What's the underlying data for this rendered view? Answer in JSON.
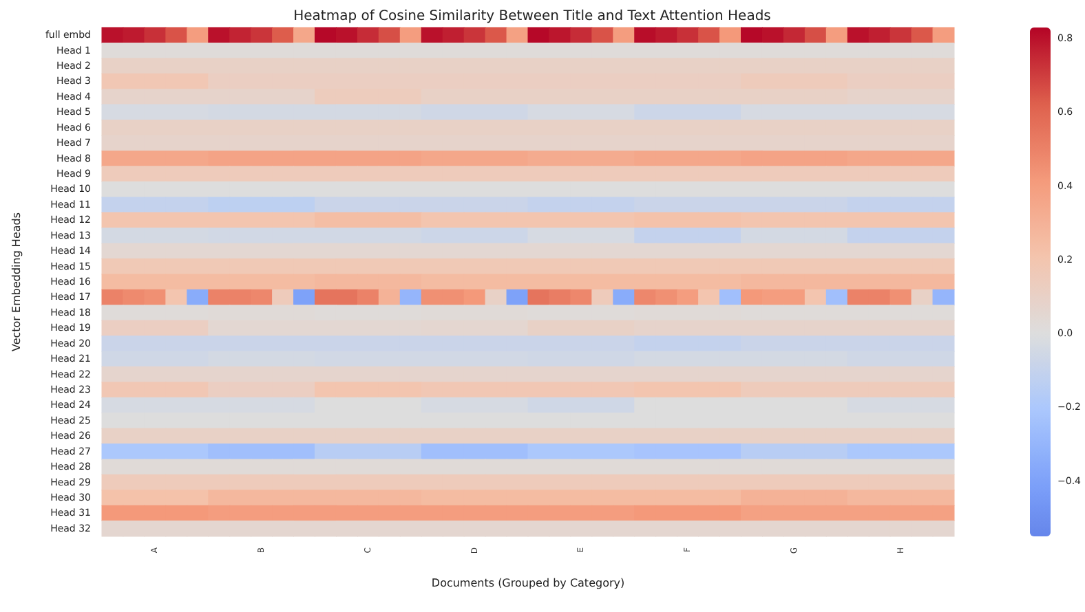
{
  "chart_data": {
    "type": "heatmap",
    "title": "Heatmap of Cosine Similarity Between Title and Text Attention Heads",
    "xlabel": "Documents (Grouped by Category)",
    "ylabel": "Vector Embedding Heads",
    "categories": [
      null,
      null,
      "A",
      null,
      null,
      null,
      null,
      "B",
      null,
      null,
      null,
      null,
      "C",
      null,
      null,
      null,
      null,
      "D",
      null,
      null,
      null,
      null,
      "E",
      null,
      null,
      null,
      null,
      "F",
      null,
      null,
      null,
      null,
      "G",
      null,
      null,
      null,
      null,
      "H",
      null,
      null
    ],
    "y_categories": [
      "full embd",
      "Head 1",
      "Head 2",
      "Head 3",
      "Head 4",
      "Head 5",
      "Head 6",
      "Head 7",
      "Head 8",
      "Head 9",
      "Head 10",
      "Head 11",
      "Head 12",
      "Head 13",
      "Head 14",
      "Head 15",
      "Head 16",
      "Head 17",
      "Head 18",
      "Head 19",
      "Head 20",
      "Head 21",
      "Head 22",
      "Head 23",
      "Head 24",
      "Head 25",
      "Head 26",
      "Head 27",
      "Head 28",
      "Head 29",
      "Head 30",
      "Head 31",
      "Head 32"
    ],
    "cells": [
      [
        0.8,
        0.78,
        0.73,
        0.65,
        0.4,
        0.8,
        0.76,
        0.72,
        0.63,
        0.35,
        0.82,
        0.8,
        0.74,
        0.66,
        0.4,
        0.8,
        0.77,
        0.72,
        0.64,
        0.38,
        0.82,
        0.79,
        0.74,
        0.65,
        0.4,
        0.81,
        0.78,
        0.73,
        0.65,
        0.42,
        0.82,
        0.8,
        0.75,
        0.66,
        0.4,
        0.8,
        0.77,
        0.72,
        0.64,
        0.4
      ],
      [
        0.02,
        0.02,
        0.02,
        0.02,
        0.02,
        0.02,
        0.02,
        0.02,
        0.02,
        0.02,
        0.02,
        0.02,
        0.02,
        0.02,
        0.02,
        0.02,
        0.02,
        0.02,
        0.02,
        0.02,
        0.02,
        0.02,
        0.02,
        0.02,
        0.02,
        0.02,
        0.02,
        0.02,
        0.02,
        0.02,
        0.02,
        0.02,
        0.02,
        0.02,
        0.02,
        0.02,
        0.02,
        0.02,
        0.02,
        0.02
      ],
      [
        0.1,
        0.1,
        0.1,
        0.1,
        0.1,
        0.1,
        0.1,
        0.1,
        0.1,
        0.1,
        0.1,
        0.1,
        0.1,
        0.1,
        0.1,
        0.1,
        0.1,
        0.1,
        0.1,
        0.1,
        0.1,
        0.1,
        0.1,
        0.1,
        0.1,
        0.1,
        0.1,
        0.1,
        0.1,
        0.1,
        0.1,
        0.1,
        0.1,
        0.1,
        0.1,
        0.1,
        0.1,
        0.1,
        0.1,
        0.1
      ],
      [
        0.18,
        0.18,
        0.18,
        0.18,
        0.18,
        0.12,
        0.12,
        0.12,
        0.12,
        0.12,
        0.12,
        0.12,
        0.12,
        0.12,
        0.12,
        0.12,
        0.12,
        0.12,
        0.12,
        0.12,
        0.12,
        0.12,
        0.12,
        0.12,
        0.12,
        0.12,
        0.12,
        0.12,
        0.12,
        0.12,
        0.15,
        0.15,
        0.15,
        0.15,
        0.15,
        0.12,
        0.12,
        0.12,
        0.12,
        0.12
      ],
      [
        0.08,
        0.08,
        0.08,
        0.08,
        0.08,
        0.08,
        0.08,
        0.08,
        0.08,
        0.08,
        0.14,
        0.14,
        0.14,
        0.14,
        0.14,
        0.1,
        0.1,
        0.1,
        0.1,
        0.1,
        0.1,
        0.1,
        0.1,
        0.1,
        0.1,
        0.1,
        0.1,
        0.1,
        0.1,
        0.1,
        0.1,
        0.1,
        0.1,
        0.1,
        0.1,
        0.08,
        0.08,
        0.08,
        0.08,
        0.08
      ],
      [
        -0.03,
        -0.03,
        -0.03,
        -0.03,
        -0.03,
        -0.04,
        -0.04,
        -0.04,
        -0.04,
        -0.04,
        -0.04,
        -0.04,
        -0.04,
        -0.04,
        -0.04,
        -0.06,
        -0.06,
        -0.06,
        -0.06,
        -0.06,
        -0.03,
        -0.03,
        -0.03,
        -0.03,
        -0.03,
        -0.07,
        -0.07,
        -0.07,
        -0.07,
        -0.07,
        -0.03,
        -0.03,
        -0.03,
        -0.03,
        -0.03,
        -0.03,
        -0.03,
        -0.03,
        -0.03,
        -0.03
      ],
      [
        0.1,
        0.1,
        0.1,
        0.1,
        0.1,
        0.1,
        0.1,
        0.1,
        0.1,
        0.1,
        0.1,
        0.1,
        0.1,
        0.1,
        0.1,
        0.1,
        0.1,
        0.1,
        0.1,
        0.1,
        0.1,
        0.1,
        0.1,
        0.1,
        0.1,
        0.1,
        0.1,
        0.1,
        0.1,
        0.1,
        0.1,
        0.1,
        0.1,
        0.1,
        0.1,
        0.1,
        0.1,
        0.1,
        0.1,
        0.1
      ],
      [
        0.08,
        0.08,
        0.08,
        0.08,
        0.08,
        0.08,
        0.08,
        0.08,
        0.08,
        0.08,
        0.08,
        0.08,
        0.08,
        0.08,
        0.08,
        0.08,
        0.08,
        0.08,
        0.08,
        0.08,
        0.08,
        0.08,
        0.08,
        0.08,
        0.08,
        0.08,
        0.08,
        0.08,
        0.08,
        0.08,
        0.08,
        0.08,
        0.08,
        0.08,
        0.08,
        0.08,
        0.08,
        0.08,
        0.08,
        0.08
      ],
      [
        0.35,
        0.35,
        0.35,
        0.35,
        0.35,
        0.37,
        0.37,
        0.37,
        0.37,
        0.37,
        0.37,
        0.37,
        0.37,
        0.37,
        0.37,
        0.35,
        0.35,
        0.35,
        0.35,
        0.35,
        0.33,
        0.33,
        0.33,
        0.33,
        0.33,
        0.35,
        0.35,
        0.35,
        0.35,
        0.35,
        0.37,
        0.37,
        0.37,
        0.37,
        0.37,
        0.35,
        0.35,
        0.35,
        0.35,
        0.35
      ],
      [
        0.15,
        0.15,
        0.15,
        0.15,
        0.15,
        0.15,
        0.15,
        0.15,
        0.15,
        0.15,
        0.15,
        0.15,
        0.15,
        0.15,
        0.15,
        0.15,
        0.15,
        0.15,
        0.15,
        0.15,
        0.15,
        0.15,
        0.15,
        0.15,
        0.15,
        0.15,
        0.15,
        0.15,
        0.15,
        0.15,
        0.15,
        0.15,
        0.15,
        0.15,
        0.15,
        0.15,
        0.15,
        0.15,
        0.15,
        0.15
      ],
      [
        0.0,
        0.0,
        0.0,
        0.0,
        0.0,
        0.0,
        0.0,
        0.0,
        0.0,
        0.0,
        0.0,
        0.0,
        0.0,
        0.0,
        0.0,
        0.0,
        0.0,
        0.0,
        0.0,
        0.0,
        0.0,
        0.0,
        0.0,
        0.0,
        0.0,
        0.0,
        0.0,
        0.0,
        0.0,
        0.0,
        0.0,
        0.0,
        0.0,
        0.0,
        0.0,
        0.0,
        0.0,
        0.0,
        0.0,
        0.0
      ],
      [
        -0.1,
        -0.1,
        -0.1,
        -0.1,
        -0.1,
        -0.13,
        -0.13,
        -0.13,
        -0.13,
        -0.13,
        -0.08,
        -0.08,
        -0.08,
        -0.08,
        -0.08,
        -0.08,
        -0.08,
        -0.08,
        -0.08,
        -0.08,
        -0.1,
        -0.1,
        -0.1,
        -0.1,
        -0.1,
        -0.08,
        -0.08,
        -0.08,
        -0.08,
        -0.08,
        -0.08,
        -0.08,
        -0.08,
        -0.08,
        -0.08,
        -0.1,
        -0.1,
        -0.1,
        -0.1,
        -0.1
      ],
      [
        0.2,
        0.2,
        0.2,
        0.2,
        0.2,
        0.2,
        0.2,
        0.2,
        0.2,
        0.2,
        0.24,
        0.24,
        0.24,
        0.24,
        0.24,
        0.2,
        0.2,
        0.2,
        0.2,
        0.2,
        0.2,
        0.2,
        0.2,
        0.2,
        0.2,
        0.22,
        0.22,
        0.22,
        0.22,
        0.22,
        0.2,
        0.2,
        0.2,
        0.2,
        0.2,
        0.2,
        0.2,
        0.2,
        0.2,
        0.2
      ],
      [
        -0.04,
        -0.04,
        -0.04,
        -0.04,
        -0.04,
        -0.05,
        -0.05,
        -0.05,
        -0.05,
        -0.05,
        -0.05,
        -0.05,
        -0.05,
        -0.05,
        -0.05,
        -0.07,
        -0.07,
        -0.07,
        -0.07,
        -0.07,
        -0.03,
        -0.03,
        -0.03,
        -0.03,
        -0.03,
        -0.1,
        -0.1,
        -0.1,
        -0.1,
        -0.1,
        -0.04,
        -0.04,
        -0.04,
        -0.04,
        -0.04,
        -0.1,
        -0.1,
        -0.1,
        -0.1,
        -0.1
      ],
      [
        0.05,
        0.05,
        0.05,
        0.05,
        0.05,
        0.05,
        0.05,
        0.05,
        0.05,
        0.05,
        0.05,
        0.05,
        0.05,
        0.05,
        0.05,
        0.05,
        0.05,
        0.05,
        0.05,
        0.05,
        0.05,
        0.05,
        0.05,
        0.05,
        0.05,
        0.05,
        0.05,
        0.05,
        0.05,
        0.05,
        0.05,
        0.05,
        0.05,
        0.05,
        0.05,
        0.05,
        0.05,
        0.05,
        0.05,
        0.05
      ],
      [
        0.17,
        0.17,
        0.17,
        0.17,
        0.17,
        0.17,
        0.17,
        0.17,
        0.17,
        0.17,
        0.17,
        0.17,
        0.17,
        0.17,
        0.17,
        0.17,
        0.17,
        0.17,
        0.17,
        0.17,
        0.17,
        0.17,
        0.17,
        0.17,
        0.17,
        0.17,
        0.17,
        0.17,
        0.17,
        0.17,
        0.17,
        0.17,
        0.17,
        0.17,
        0.17,
        0.17,
        0.17,
        0.17,
        0.17,
        0.17
      ],
      [
        0.25,
        0.25,
        0.25,
        0.25,
        0.25,
        0.25,
        0.25,
        0.25,
        0.25,
        0.25,
        0.27,
        0.27,
        0.27,
        0.27,
        0.27,
        0.25,
        0.25,
        0.25,
        0.25,
        0.25,
        0.25,
        0.25,
        0.25,
        0.25,
        0.25,
        0.25,
        0.25,
        0.25,
        0.25,
        0.25,
        0.27,
        0.27,
        0.27,
        0.27,
        0.27,
        0.27,
        0.27,
        0.27,
        0.27,
        0.27
      ],
      [
        0.5,
        0.47,
        0.45,
        0.2,
        -0.35,
        0.5,
        0.5,
        0.48,
        0.15,
        -0.4,
        0.55,
        0.55,
        0.5,
        0.3,
        -0.3,
        0.45,
        0.45,
        0.42,
        0.1,
        -0.4,
        0.55,
        0.52,
        0.48,
        0.15,
        -0.35,
        0.48,
        0.45,
        0.4,
        0.2,
        -0.25,
        0.42,
        0.4,
        0.4,
        0.2,
        -0.25,
        0.5,
        0.5,
        0.45,
        0.1,
        -0.3
      ],
      [
        0.02,
        0.02,
        0.02,
        0.02,
        0.02,
        0.03,
        0.03,
        0.03,
        0.03,
        0.03,
        0.02,
        0.02,
        0.02,
        0.02,
        0.02,
        0.03,
        0.03,
        0.03,
        0.03,
        0.03,
        0.02,
        0.02,
        0.02,
        0.02,
        0.02,
        0.03,
        0.03,
        0.03,
        0.03,
        0.03,
        0.02,
        0.02,
        0.02,
        0.02,
        0.02,
        0.02,
        0.02,
        0.02,
        0.02,
        0.02
      ],
      [
        0.12,
        0.12,
        0.12,
        0.12,
        0.12,
        0.05,
        0.05,
        0.05,
        0.05,
        0.05,
        0.05,
        0.05,
        0.05,
        0.05,
        0.05,
        0.06,
        0.06,
        0.06,
        0.06,
        0.06,
        0.1,
        0.1,
        0.1,
        0.1,
        0.1,
        0.08,
        0.08,
        0.08,
        0.08,
        0.08,
        0.08,
        0.08,
        0.08,
        0.08,
        0.08,
        0.08,
        0.08,
        0.08,
        0.08,
        0.08
      ],
      [
        -0.08,
        -0.08,
        -0.08,
        -0.08,
        -0.08,
        -0.08,
        -0.08,
        -0.08,
        -0.08,
        -0.08,
        -0.08,
        -0.08,
        -0.08,
        -0.08,
        -0.08,
        -0.08,
        -0.08,
        -0.08,
        -0.08,
        -0.08,
        -0.08,
        -0.08,
        -0.08,
        -0.08,
        -0.08,
        -0.1,
        -0.1,
        -0.1,
        -0.1,
        -0.1,
        -0.08,
        -0.08,
        -0.08,
        -0.08,
        -0.08,
        -0.08,
        -0.08,
        -0.08,
        -0.08,
        -0.08
      ],
      [
        -0.06,
        -0.06,
        -0.06,
        -0.06,
        -0.06,
        -0.04,
        -0.04,
        -0.04,
        -0.04,
        -0.04,
        -0.05,
        -0.05,
        -0.05,
        -0.05,
        -0.05,
        -0.05,
        -0.05,
        -0.05,
        -0.05,
        -0.05,
        -0.06,
        -0.06,
        -0.06,
        -0.06,
        -0.06,
        -0.04,
        -0.04,
        -0.04,
        -0.04,
        -0.04,
        -0.04,
        -0.04,
        -0.04,
        -0.04,
        -0.04,
        -0.06,
        -0.06,
        -0.06,
        -0.06,
        -0.06
      ],
      [
        0.07,
        0.07,
        0.07,
        0.07,
        0.07,
        0.07,
        0.07,
        0.07,
        0.07,
        0.07,
        0.07,
        0.07,
        0.07,
        0.07,
        0.07,
        0.07,
        0.07,
        0.07,
        0.07,
        0.07,
        0.07,
        0.07,
        0.07,
        0.07,
        0.07,
        0.07,
        0.07,
        0.07,
        0.07,
        0.07,
        0.07,
        0.07,
        0.07,
        0.07,
        0.07,
        0.07,
        0.07,
        0.07,
        0.07,
        0.07
      ],
      [
        0.18,
        0.18,
        0.18,
        0.18,
        0.18,
        0.12,
        0.12,
        0.12,
        0.12,
        0.12,
        0.2,
        0.2,
        0.2,
        0.2,
        0.2,
        0.18,
        0.18,
        0.18,
        0.18,
        0.18,
        0.18,
        0.18,
        0.18,
        0.18,
        0.18,
        0.2,
        0.2,
        0.2,
        0.2,
        0.2,
        0.15,
        0.15,
        0.15,
        0.15,
        0.15,
        0.15,
        0.15,
        0.15,
        0.15,
        0.15
      ],
      [
        -0.03,
        -0.03,
        -0.03,
        -0.03,
        -0.03,
        -0.03,
        -0.03,
        -0.03,
        -0.03,
        -0.03,
        0.0,
        0.0,
        0.0,
        0.0,
        0.0,
        -0.03,
        -0.03,
        -0.03,
        -0.03,
        -0.03,
        -0.06,
        -0.06,
        -0.06,
        -0.06,
        -0.06,
        0.0,
        0.0,
        0.0,
        0.0,
        0.0,
        0.0,
        0.0,
        0.0,
        0.0,
        0.0,
        -0.03,
        -0.03,
        -0.03,
        -0.03,
        -0.03
      ],
      [
        0.0,
        0.0,
        0.0,
        0.0,
        0.0,
        0.0,
        0.0,
        0.0,
        0.0,
        0.0,
        0.0,
        0.0,
        0.0,
        0.0,
        0.0,
        0.0,
        0.0,
        0.0,
        0.0,
        0.0,
        0.0,
        0.0,
        0.0,
        0.0,
        0.0,
        0.0,
        0.0,
        0.0,
        0.0,
        0.0,
        0.0,
        0.0,
        0.0,
        0.0,
        0.0,
        0.0,
        0.0,
        0.0,
        0.0,
        0.0
      ],
      [
        0.1,
        0.1,
        0.1,
        0.1,
        0.1,
        0.1,
        0.1,
        0.1,
        0.1,
        0.1,
        0.1,
        0.1,
        0.1,
        0.1,
        0.1,
        0.1,
        0.1,
        0.1,
        0.1,
        0.1,
        0.1,
        0.1,
        0.1,
        0.1,
        0.1,
        0.1,
        0.1,
        0.1,
        0.1,
        0.1,
        0.1,
        0.1,
        0.1,
        0.1,
        0.1,
        0.1,
        0.1,
        0.1,
        0.1,
        0.1
      ],
      [
        -0.2,
        -0.2,
        -0.2,
        -0.2,
        -0.2,
        -0.25,
        -0.25,
        -0.25,
        -0.25,
        -0.25,
        -0.15,
        -0.15,
        -0.15,
        -0.15,
        -0.15,
        -0.25,
        -0.25,
        -0.25,
        -0.25,
        -0.25,
        -0.2,
        -0.2,
        -0.2,
        -0.2,
        -0.2,
        -0.22,
        -0.22,
        -0.22,
        -0.22,
        -0.22,
        -0.15,
        -0.15,
        -0.15,
        -0.15,
        -0.15,
        -0.2,
        -0.2,
        -0.2,
        -0.2,
        -0.2
      ],
      [
        0.03,
        0.03,
        0.03,
        0.03,
        0.03,
        0.03,
        0.03,
        0.03,
        0.03,
        0.03,
        0.03,
        0.03,
        0.03,
        0.03,
        0.03,
        0.03,
        0.03,
        0.03,
        0.03,
        0.03,
        0.03,
        0.03,
        0.03,
        0.03,
        0.03,
        0.03,
        0.03,
        0.03,
        0.03,
        0.03,
        0.03,
        0.03,
        0.03,
        0.03,
        0.03,
        0.03,
        0.03,
        0.03,
        0.03,
        0.03
      ],
      [
        0.15,
        0.15,
        0.15,
        0.15,
        0.15,
        0.15,
        0.15,
        0.15,
        0.15,
        0.15,
        0.15,
        0.15,
        0.15,
        0.15,
        0.15,
        0.15,
        0.15,
        0.15,
        0.15,
        0.15,
        0.15,
        0.15,
        0.15,
        0.15,
        0.15,
        0.15,
        0.15,
        0.15,
        0.15,
        0.15,
        0.15,
        0.15,
        0.15,
        0.15,
        0.15,
        0.15,
        0.15,
        0.15,
        0.15,
        0.15
      ],
      [
        0.22,
        0.22,
        0.22,
        0.22,
        0.22,
        0.27,
        0.27,
        0.27,
        0.27,
        0.27,
        0.27,
        0.27,
        0.27,
        0.27,
        0.27,
        0.25,
        0.25,
        0.25,
        0.25,
        0.25,
        0.25,
        0.25,
        0.25,
        0.25,
        0.25,
        0.25,
        0.25,
        0.25,
        0.25,
        0.25,
        0.3,
        0.3,
        0.3,
        0.3,
        0.3,
        0.27,
        0.27,
        0.27,
        0.27,
        0.27
      ],
      [
        0.42,
        0.42,
        0.42,
        0.42,
        0.42,
        0.4,
        0.4,
        0.4,
        0.4,
        0.4,
        0.4,
        0.4,
        0.4,
        0.4,
        0.4,
        0.4,
        0.4,
        0.4,
        0.4,
        0.4,
        0.4,
        0.4,
        0.4,
        0.4,
        0.4,
        0.42,
        0.42,
        0.42,
        0.42,
        0.42,
        0.38,
        0.38,
        0.38,
        0.38,
        0.38,
        0.38,
        0.38,
        0.38,
        0.38,
        0.38
      ],
      [
        0.06,
        0.06,
        0.06,
        0.06,
        0.06,
        0.06,
        0.06,
        0.06,
        0.06,
        0.06,
        0.06,
        0.06,
        0.06,
        0.06,
        0.06,
        0.06,
        0.06,
        0.06,
        0.06,
        0.06,
        0.06,
        0.06,
        0.06,
        0.06,
        0.06,
        0.06,
        0.06,
        0.06,
        0.06,
        0.06,
        0.06,
        0.06,
        0.06,
        0.06,
        0.06,
        0.06,
        0.06,
        0.06,
        0.06,
        0.06
      ]
    ],
    "clim": [
      -0.55,
      0.83
    ],
    "cticks": [
      {
        "value": -0.4,
        "label": "−0.4"
      },
      {
        "value": -0.2,
        "label": "−0.2"
      },
      {
        "value": 0,
        "label": "0.0"
      },
      {
        "value": 0.2,
        "label": "0.2"
      },
      {
        "value": 0.4,
        "label": "0.4"
      },
      {
        "value": 0.6,
        "label": "0.6"
      },
      {
        "value": 0.8,
        "label": "0.8"
      }
    ]
  }
}
